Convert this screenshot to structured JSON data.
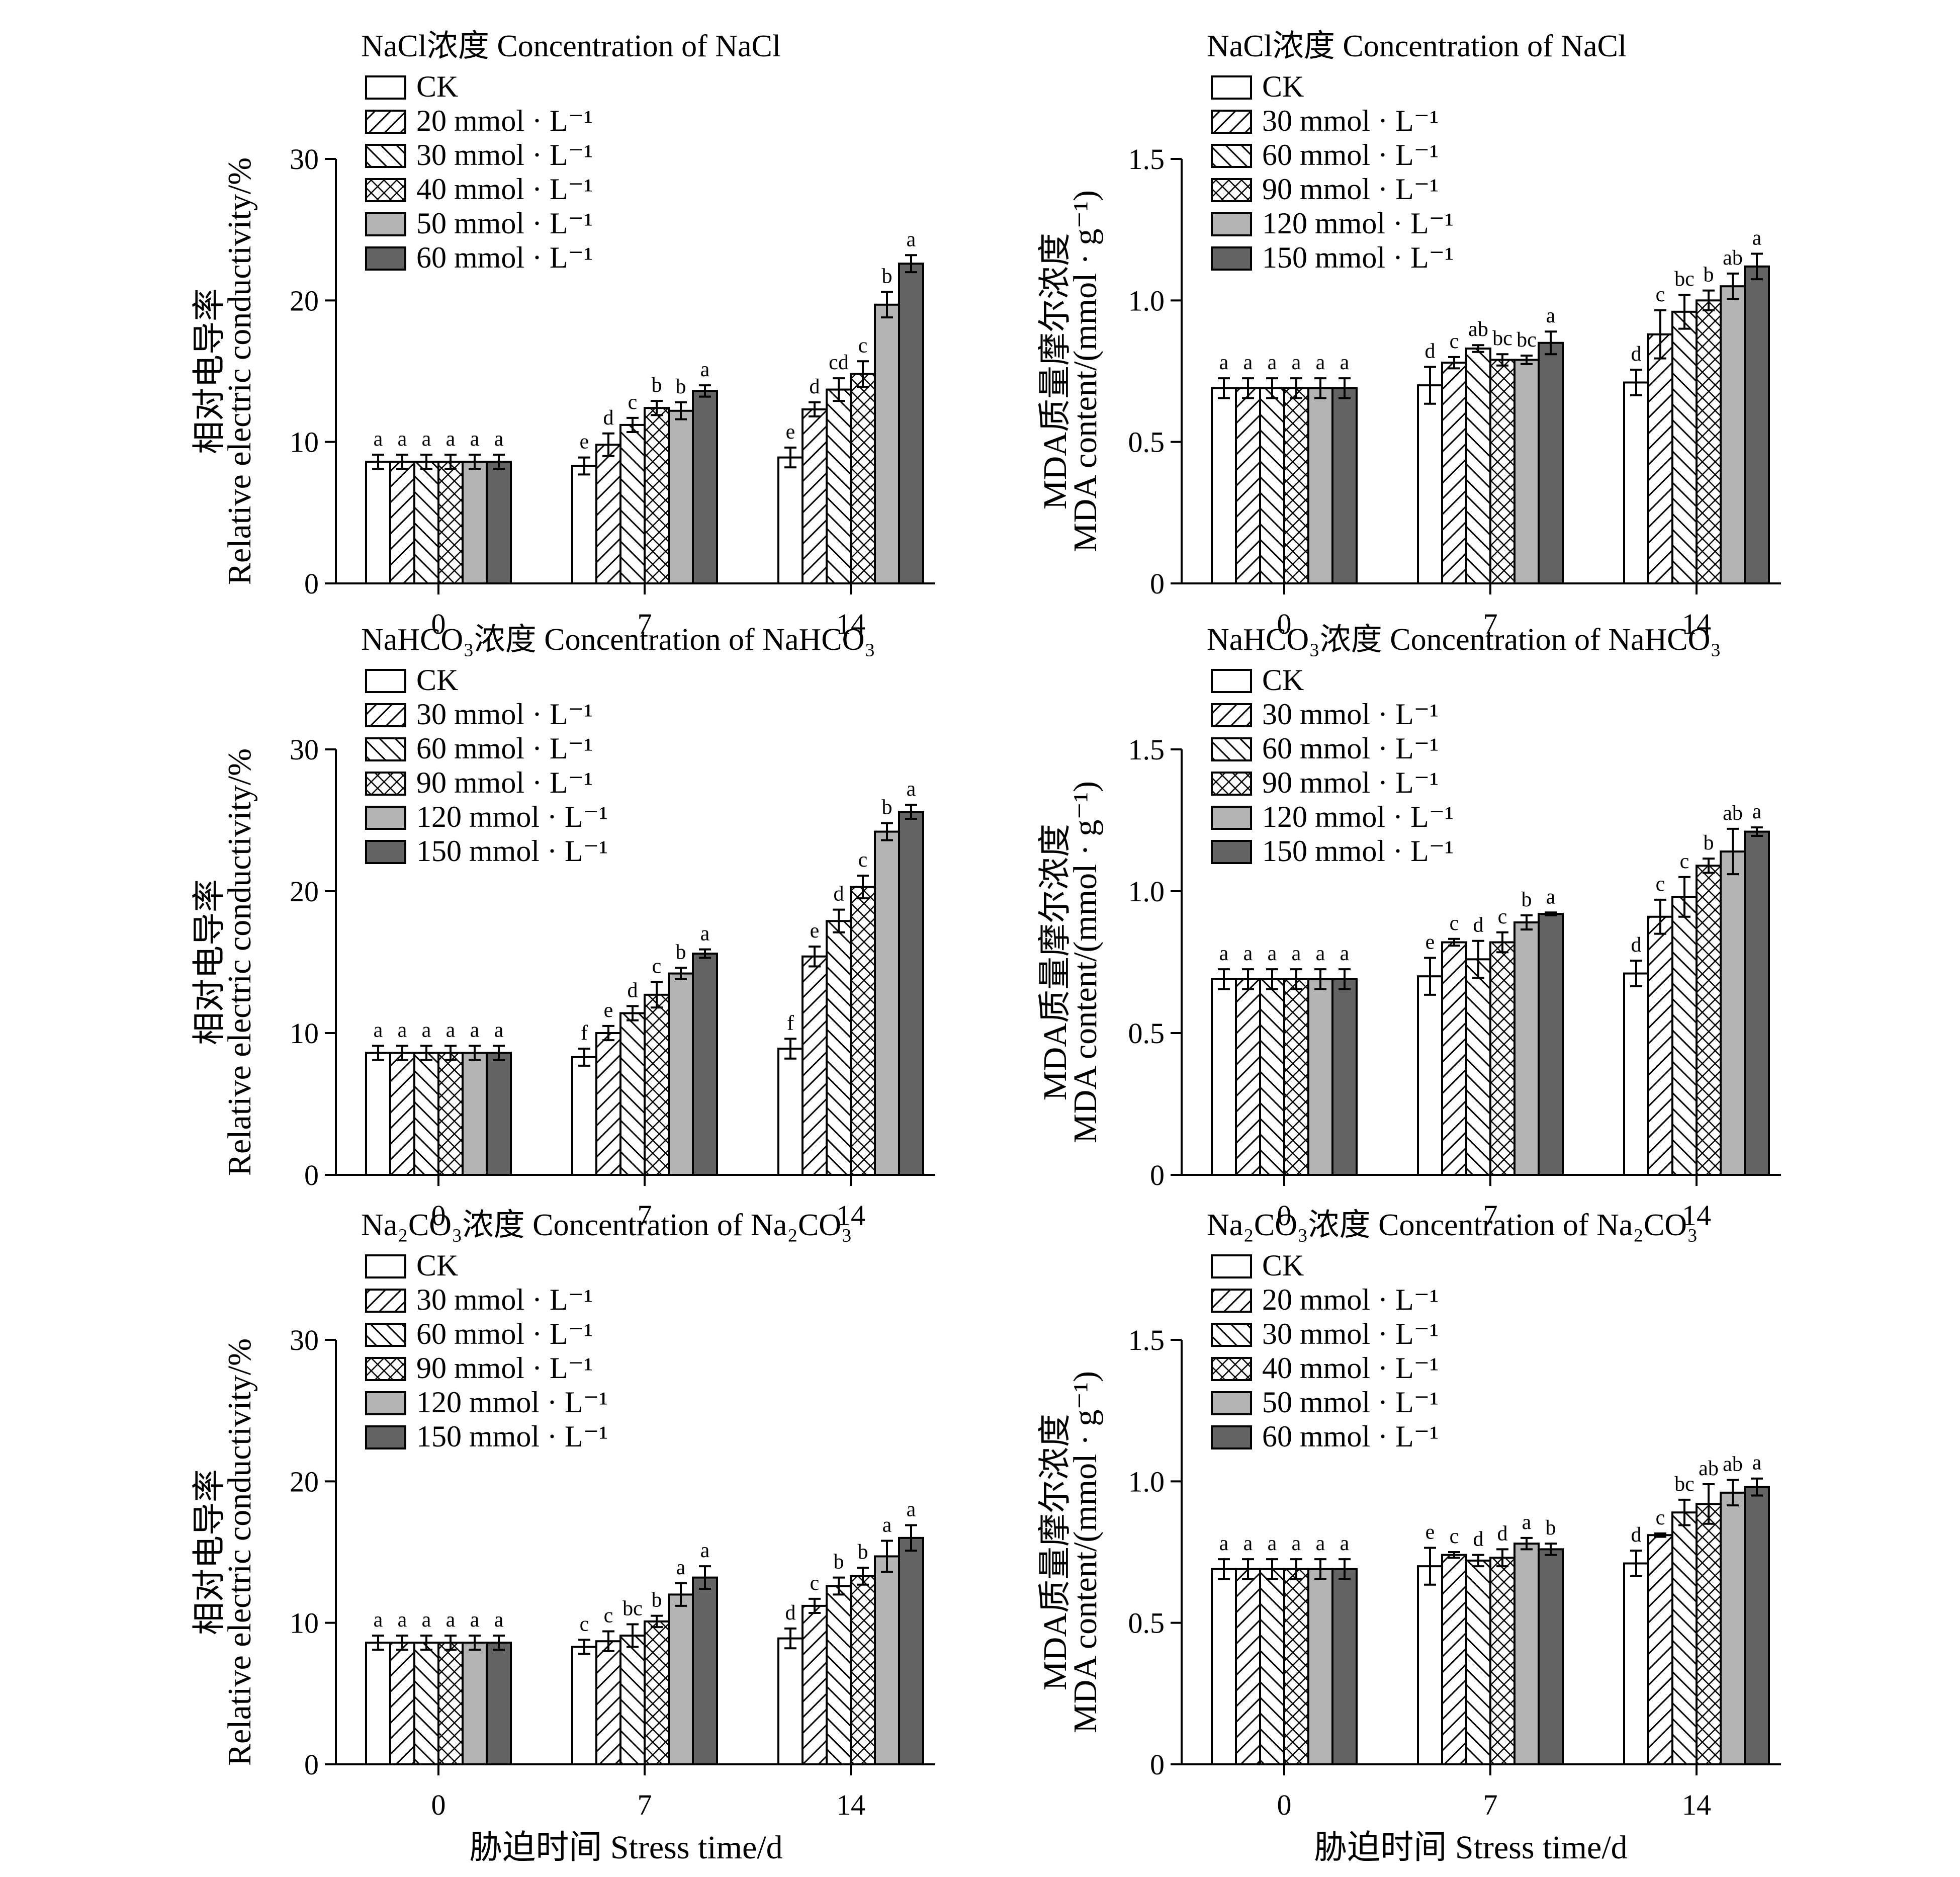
{
  "colors": {
    "CK": "#ffffff",
    "t1": "hatch-forward",
    "t2": "hatch-backward",
    "t3": "crosshatch",
    "t4": "#b4b4b4",
    "t5": "#636363",
    "outline": "#000000"
  },
  "x_axis_title": "胁迫时间 Stress time/d",
  "chart_data": [
    {
      "type": "bar",
      "id": "nacl-rec",
      "legend_title": "NaCl浓度 Concentration of NaCl",
      "ylabel_cn": "相对电导率",
      "ylabel_en": "Relative electric conductivity/%",
      "ylim": [
        0,
        30
      ],
      "yticks": [
        "0",
        "10",
        "20",
        "30"
      ],
      "categories": [
        "0",
        "7",
        "14"
      ],
      "series": [
        {
          "name": "CK",
          "values": [
            8.6,
            8.3,
            8.9
          ],
          "errors": [
            0.5,
            0.6,
            0.7
          ],
          "letters": [
            "a",
            "e",
            "e"
          ]
        },
        {
          "name": "20 mmol · L⁻¹",
          "values": [
            8.6,
            9.8,
            12.3
          ],
          "errors": [
            0.5,
            0.8,
            0.5
          ],
          "letters": [
            "a",
            "d",
            "d"
          ]
        },
        {
          "name": "30 mmol · L⁻¹",
          "values": [
            8.6,
            11.2,
            13.7
          ],
          "errors": [
            0.5,
            0.5,
            0.8
          ],
          "letters": [
            "a",
            "c",
            "cd"
          ]
        },
        {
          "name": "40 mmol · L⁻¹",
          "values": [
            8.6,
            12.4,
            14.8
          ],
          "errors": [
            0.5,
            0.5,
            0.9
          ],
          "letters": [
            "a",
            "b",
            "c"
          ]
        },
        {
          "name": "50 mmol · L⁻¹",
          "values": [
            8.6,
            12.2,
            19.7
          ],
          "errors": [
            0.5,
            0.6,
            0.9
          ],
          "letters": [
            "a",
            "b",
            "b"
          ]
        },
        {
          "name": "60 mmol · L⁻¹",
          "values": [
            8.6,
            13.6,
            22.6
          ],
          "errors": [
            0.5,
            0.4,
            0.6
          ],
          "letters": [
            "a",
            "a",
            "a"
          ]
        }
      ]
    },
    {
      "type": "bar",
      "id": "nacl-mda",
      "legend_title": "NaCl浓度 Concentration of NaCl",
      "ylabel_cn": "MDA质量摩尔浓度",
      "ylabel_en": "MDA content/(mmol · g⁻¹)",
      "ylim": [
        0,
        1.5
      ],
      "yticks": [
        "0",
        "0.5",
        "1.0",
        "1.5"
      ],
      "categories": [
        "0",
        "7",
        "14"
      ],
      "series": [
        {
          "name": "CK",
          "values": [
            0.69,
            0.7,
            0.71
          ],
          "errors": [
            0.035,
            0.065,
            0.045
          ],
          "letters": [
            "a",
            "d",
            "d"
          ]
        },
        {
          "name": "30 mmol · L⁻¹",
          "values": [
            0.69,
            0.78,
            0.88
          ],
          "errors": [
            0.035,
            0.02,
            0.085
          ],
          "letters": [
            "a",
            "c",
            "c"
          ]
        },
        {
          "name": "60 mmol · L⁻¹",
          "values": [
            0.69,
            0.83,
            0.96
          ],
          "errors": [
            0.035,
            0.012,
            0.06
          ],
          "letters": [
            "a",
            "ab",
            "bc"
          ]
        },
        {
          "name": "90 mmol · L⁻¹",
          "values": [
            0.69,
            0.79,
            1.0
          ],
          "errors": [
            0.035,
            0.02,
            0.035
          ],
          "letters": [
            "a",
            "bc",
            "b"
          ]
        },
        {
          "name": "120 mmol · L⁻¹",
          "values": [
            0.69,
            0.79,
            1.05
          ],
          "errors": [
            0.035,
            0.015,
            0.045
          ],
          "letters": [
            "a",
            "bc",
            "ab"
          ]
        },
        {
          "name": "150 mmol · L⁻¹",
          "values": [
            0.69,
            0.85,
            1.12
          ],
          "errors": [
            0.035,
            0.04,
            0.045
          ],
          "letters": [
            "a",
            "a",
            "a"
          ]
        }
      ]
    },
    {
      "type": "bar",
      "id": "nahco3-rec",
      "legend_title": "NaHCO₃浓度 Concentration of NaHCO₃",
      "ylabel_cn": "相对电导率",
      "ylabel_en": "Relative electric conductivity/%",
      "ylim": [
        0,
        30
      ],
      "yticks": [
        "0",
        "10",
        "20",
        "30"
      ],
      "categories": [
        "0",
        "7",
        "14"
      ],
      "series": [
        {
          "name": "CK",
          "values": [
            8.6,
            8.3,
            8.9
          ],
          "errors": [
            0.5,
            0.6,
            0.7
          ],
          "letters": [
            "a",
            "f",
            "f"
          ]
        },
        {
          "name": "30 mmol · L⁻¹",
          "values": [
            8.6,
            10.0,
            15.4
          ],
          "errors": [
            0.5,
            0.5,
            0.7
          ],
          "letters": [
            "a",
            "e",
            "e"
          ]
        },
        {
          "name": "60 mmol · L⁻¹",
          "values": [
            8.6,
            11.4,
            17.9
          ],
          "errors": [
            0.5,
            0.5,
            0.8
          ],
          "letters": [
            "a",
            "d",
            "d"
          ]
        },
        {
          "name": "90 mmol · L⁻¹",
          "values": [
            8.6,
            12.7,
            20.3
          ],
          "errors": [
            0.5,
            0.9,
            0.8
          ],
          "letters": [
            "a",
            "c",
            "c"
          ]
        },
        {
          "name": "120 mmol · L⁻¹",
          "values": [
            8.6,
            14.2,
            24.2
          ],
          "errors": [
            0.5,
            0.4,
            0.6
          ],
          "letters": [
            "a",
            "b",
            "b"
          ]
        },
        {
          "name": "150 mmol · L⁻¹",
          "values": [
            8.6,
            15.6,
            25.6
          ],
          "errors": [
            0.5,
            0.3,
            0.5
          ],
          "letters": [
            "a",
            "a",
            "a"
          ]
        }
      ]
    },
    {
      "type": "bar",
      "id": "nahco3-mda",
      "legend_title": "NaHCO₃浓度 Concentration of NaHCO₃",
      "ylabel_cn": "MDA质量摩尔浓度",
      "ylabel_en": "MDA content/(mmol · g⁻¹)",
      "ylim": [
        0,
        1.5
      ],
      "yticks": [
        "0",
        "0.5",
        "1.0",
        "1.5"
      ],
      "categories": [
        "0",
        "7",
        "14"
      ],
      "series": [
        {
          "name": "CK",
          "values": [
            0.69,
            0.7,
            0.71
          ],
          "errors": [
            0.035,
            0.065,
            0.045
          ],
          "letters": [
            "a",
            "e",
            "d"
          ]
        },
        {
          "name": "30 mmol · L⁻¹",
          "values": [
            0.69,
            0.82,
            0.91
          ],
          "errors": [
            0.035,
            0.012,
            0.06
          ],
          "letters": [
            "a",
            "c",
            "c"
          ]
        },
        {
          "name": "60 mmol · L⁻¹",
          "values": [
            0.69,
            0.76,
            0.98
          ],
          "errors": [
            0.035,
            0.065,
            0.07
          ],
          "letters": [
            "a",
            "d",
            "c"
          ]
        },
        {
          "name": "90 mmol · L⁻¹",
          "values": [
            0.69,
            0.82,
            1.09
          ],
          "errors": [
            0.035,
            0.035,
            0.025
          ],
          "letters": [
            "a",
            "c",
            "b"
          ]
        },
        {
          "name": "120 mmol · L⁻¹",
          "values": [
            0.69,
            0.89,
            1.14
          ],
          "errors": [
            0.035,
            0.025,
            0.08
          ],
          "letters": [
            "a",
            "b",
            "ab"
          ]
        },
        {
          "name": "150 mmol · L⁻¹",
          "values": [
            0.69,
            0.92,
            1.21
          ],
          "errors": [
            0.035,
            0.005,
            0.015
          ],
          "letters": [
            "a",
            "a",
            "a"
          ]
        }
      ]
    },
    {
      "type": "bar",
      "id": "na2co3-rec",
      "legend_title": "Na₂CO₃浓度 Concentration of Na₂CO₃",
      "ylabel_cn": "相对电导率",
      "ylabel_en": "Relative electric conductivity/%",
      "ylim": [
        0,
        30
      ],
      "yticks": [
        "0",
        "10",
        "20",
        "30"
      ],
      "categories": [
        "0",
        "7",
        "14"
      ],
      "series": [
        {
          "name": "CK",
          "values": [
            8.6,
            8.3,
            8.9
          ],
          "errors": [
            0.5,
            0.5,
            0.7
          ],
          "letters": [
            "a",
            "c",
            "d"
          ]
        },
        {
          "name": "30 mmol · L⁻¹",
          "values": [
            8.6,
            8.7,
            11.2
          ],
          "errors": [
            0.5,
            0.7,
            0.5
          ],
          "letters": [
            "a",
            "c",
            "c"
          ]
        },
        {
          "name": "60 mmol · L⁻¹",
          "values": [
            8.6,
            9.1,
            12.6
          ],
          "errors": [
            0.5,
            0.8,
            0.6
          ],
          "letters": [
            "a",
            "bc",
            "b"
          ]
        },
        {
          "name": "90 mmol · L⁻¹",
          "values": [
            8.6,
            10.1,
            13.3
          ],
          "errors": [
            0.5,
            0.4,
            0.6
          ],
          "letters": [
            "a",
            "b",
            "b"
          ]
        },
        {
          "name": "120 mmol · L⁻¹",
          "values": [
            8.6,
            12.0,
            14.7
          ],
          "errors": [
            0.5,
            0.8,
            1.1
          ],
          "letters": [
            "a",
            "a",
            "a"
          ]
        },
        {
          "name": "150 mmol · L⁻¹",
          "values": [
            8.6,
            13.2,
            16.0
          ],
          "errors": [
            0.5,
            0.8,
            0.9
          ],
          "letters": [
            "a",
            "a",
            "a"
          ]
        }
      ]
    },
    {
      "type": "bar",
      "id": "na2co3-mda",
      "legend_title": "Na₂CO₃浓度 Concentration of Na₂CO₃",
      "ylabel_cn": "MDA质量摩尔浓度",
      "ylabel_en": "MDA content/(mmol · g⁻¹)",
      "ylim": [
        0,
        1.5
      ],
      "yticks": [
        "0",
        "0.5",
        "1.0",
        "1.5"
      ],
      "categories": [
        "0",
        "7",
        "14"
      ],
      "series": [
        {
          "name": "CK",
          "values": [
            0.69,
            0.7,
            0.71
          ],
          "errors": [
            0.035,
            0.065,
            0.045
          ],
          "letters": [
            "a",
            "e",
            "d"
          ]
        },
        {
          "name": "20 mmol · L⁻¹",
          "values": [
            0.69,
            0.74,
            0.81
          ],
          "errors": [
            0.035,
            0.01,
            0.006
          ],
          "letters": [
            "a",
            "c",
            "c"
          ]
        },
        {
          "name": "30 mmol · L⁻¹",
          "values": [
            0.69,
            0.72,
            0.89
          ],
          "errors": [
            0.035,
            0.02,
            0.045
          ],
          "letters": [
            "a",
            "d",
            "bc"
          ]
        },
        {
          "name": "40 mmol · L⁻¹",
          "values": [
            0.69,
            0.73,
            0.92
          ],
          "errors": [
            0.035,
            0.03,
            0.07
          ],
          "letters": [
            "a",
            "d",
            "ab"
          ]
        },
        {
          "name": "50 mmol · L⁻¹",
          "values": [
            0.69,
            0.78,
            0.96
          ],
          "errors": [
            0.035,
            0.02,
            0.045
          ],
          "letters": [
            "a",
            "a",
            "ab"
          ]
        },
        {
          "name": "60 mmol · L⁻¹",
          "values": [
            0.69,
            0.76,
            0.98
          ],
          "errors": [
            0.035,
            0.02,
            0.03
          ],
          "letters": [
            "a",
            "b",
            "a"
          ]
        }
      ]
    }
  ]
}
